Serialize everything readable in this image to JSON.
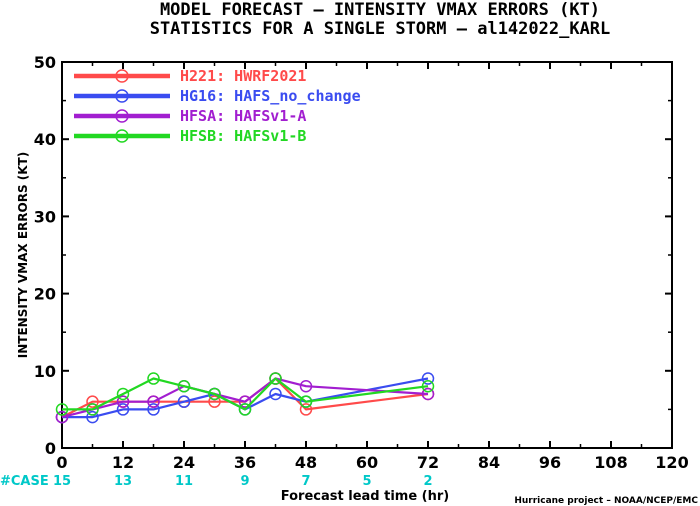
{
  "chart_data": {
    "type": "line",
    "title": "MODEL FORECAST – INTENSITY VMAX ERRORS (KT)",
    "subtitle": "STATISTICS FOR A SINGLE STORM – al142022_KARL",
    "xlabel": "Forecast lead time (hr)",
    "ylabel": "INTENSITY VMAX ERRORS (KT)",
    "xlim": [
      0,
      120
    ],
    "ylim": [
      0,
      50
    ],
    "xticks": [
      0,
      12,
      24,
      36,
      48,
      60,
      72,
      84,
      96,
      108,
      120
    ],
    "yticks": [
      0,
      10,
      20,
      30,
      40,
      50
    ],
    "legend_position": "top-left",
    "grid": false,
    "series": [
      {
        "name": "H221: HWRF2021",
        "color": "#ff4a4a",
        "x": [
          0,
          6,
          12,
          18,
          24,
          30,
          36,
          42,
          48,
          72
        ],
        "y": [
          4,
          6,
          6,
          6,
          6,
          6,
          6,
          9,
          5,
          7
        ]
      },
      {
        "name": "HG16: HAFS_no_change",
        "color": "#3a4cf0",
        "x": [
          0,
          6,
          12,
          18,
          24,
          30,
          36,
          42,
          48,
          72
        ],
        "y": [
          4,
          4,
          5,
          5,
          6,
          7,
          5,
          7,
          6,
          9
        ]
      },
      {
        "name": "HFSA: HAFSv1-A",
        "color": "#a21ed0",
        "x": [
          0,
          6,
          12,
          18,
          24,
          30,
          36,
          42,
          48,
          72
        ],
        "y": [
          4,
          5,
          6,
          6,
          8,
          7,
          6,
          9,
          8,
          7
        ]
      },
      {
        "name": "HFSB: HAFSv1-B",
        "color": "#22d822",
        "x": [
          0,
          6,
          12,
          18,
          24,
          30,
          36,
          42,
          48,
          72
        ],
        "y": [
          5,
          5,
          7,
          9,
          8,
          7,
          5,
          9,
          6,
          8
        ]
      }
    ],
    "cases": {
      "label": "#CASE",
      "color": "#00c8c8",
      "x": [
        0,
        12,
        24,
        36,
        48,
        60,
        72
      ],
      "values": [
        "15",
        "13",
        "11",
        "9",
        "7",
        "5",
        "2"
      ]
    },
    "credit": "Hurricane project – NOAA/NCEP/EMC"
  }
}
